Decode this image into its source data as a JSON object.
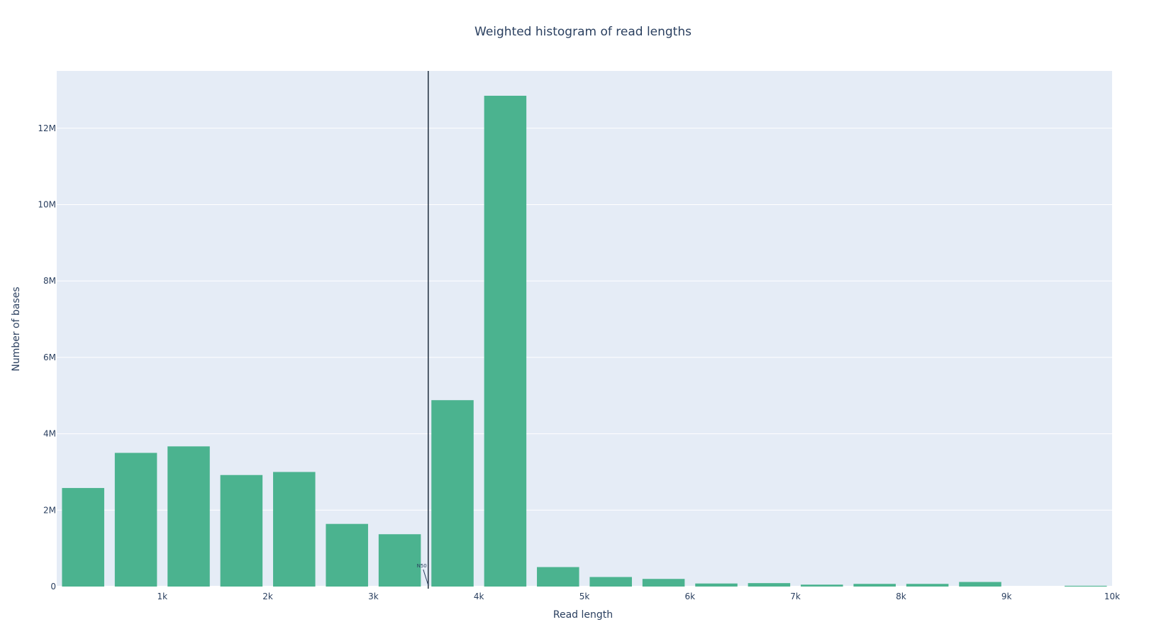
{
  "chart_data": {
    "type": "bar",
    "title": "Weighted histogram of read lengths",
    "xlabel": "Read length",
    "ylabel": "Number of bases",
    "xlim": [
      0,
      10000
    ],
    "ylim": [
      0,
      13500000
    ],
    "grid": true,
    "bin_width": 500,
    "bin_centers": [
      250,
      750,
      1250,
      1750,
      2250,
      2750,
      3250,
      3750,
      4250,
      4750,
      5250,
      5750,
      6250,
      6750,
      7250,
      7750,
      8250,
      8750,
      9250,
      9750
    ],
    "values": [
      2580000,
      3500000,
      3670000,
      2920000,
      3000000,
      1640000,
      1370000,
      4880000,
      12850000,
      510000,
      250000,
      200000,
      80000,
      90000,
      50000,
      70000,
      70000,
      120000,
      0,
      20000
    ],
    "x_ticks": [
      {
        "value": 1000,
        "label": "1k"
      },
      {
        "value": 2000,
        "label": "2k"
      },
      {
        "value": 3000,
        "label": "3k"
      },
      {
        "value": 4000,
        "label": "4k"
      },
      {
        "value": 5000,
        "label": "5k"
      },
      {
        "value": 6000,
        "label": "6k"
      },
      {
        "value": 7000,
        "label": "7k"
      },
      {
        "value": 8000,
        "label": "8k"
      },
      {
        "value": 9000,
        "label": "9k"
      },
      {
        "value": 10000,
        "label": "10k"
      }
    ],
    "y_ticks": [
      {
        "value": 0,
        "label": "0"
      },
      {
        "value": 2000000,
        "label": "2M"
      },
      {
        "value": 4000000,
        "label": "4M"
      },
      {
        "value": 6000000,
        "label": "6M"
      },
      {
        "value": 8000000,
        "label": "8M"
      },
      {
        "value": 10000000,
        "label": "10M"
      },
      {
        "value": 12000000,
        "label": "12M"
      }
    ],
    "reference_line": {
      "x": 3520,
      "label": "N50"
    },
    "colors": {
      "bar": "#4bb38f",
      "plot_bg": "#e5ecf6",
      "grid": "#ffffff",
      "text": "#2a3f5f",
      "reference_line": "#1f2d3d"
    }
  }
}
